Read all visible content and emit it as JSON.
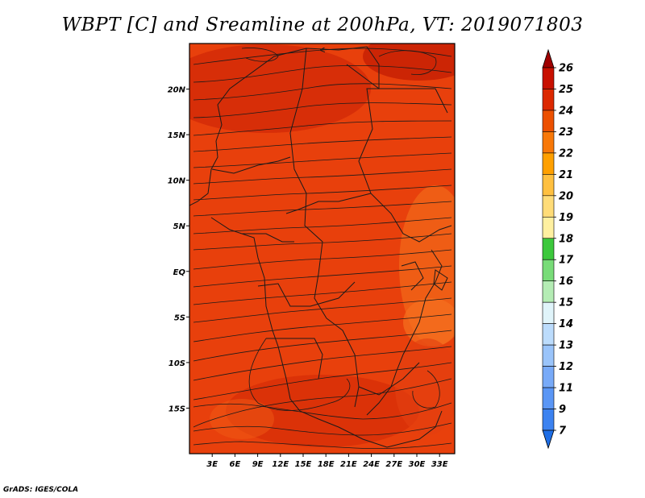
{
  "title": "WBPT [C] and Sreamline at 200hPa, VT: 2019071803",
  "credit": "GrADS: IGES/COLA",
  "map": {
    "lon_range": [
      0,
      35
    ],
    "lat_range": [
      -20,
      25
    ],
    "lon_ticks": [
      "3E",
      "6E",
      "9E",
      "12E",
      "15E",
      "18E",
      "21E",
      "24E",
      "27E",
      "30E",
      "33E"
    ],
    "lat_ticks": [
      "20N",
      "15N",
      "10N",
      "5N",
      "EQ",
      "5S",
      "10S",
      "15S"
    ],
    "base_color": "#e8400c"
  },
  "colorbar": {
    "labels": [
      "7",
      "9",
      "11",
      "12",
      "13",
      "14",
      "15",
      "16",
      "17",
      "18",
      "19",
      "20",
      "21",
      "22",
      "23",
      "24",
      "25",
      "26"
    ],
    "colors": [
      "#1e6ee6",
      "#3c82f0",
      "#5a96f5",
      "#78aaf8",
      "#9ac4fa",
      "#bcdcfc",
      "#e0f4fa",
      "#b4ecb4",
      "#78dc78",
      "#3cc83c",
      "#fff0a0",
      "#ffdc78",
      "#ffc040",
      "#ffa000",
      "#f87808",
      "#ec5000",
      "#dc2800",
      "#c81000",
      "#a00000"
    ]
  }
}
